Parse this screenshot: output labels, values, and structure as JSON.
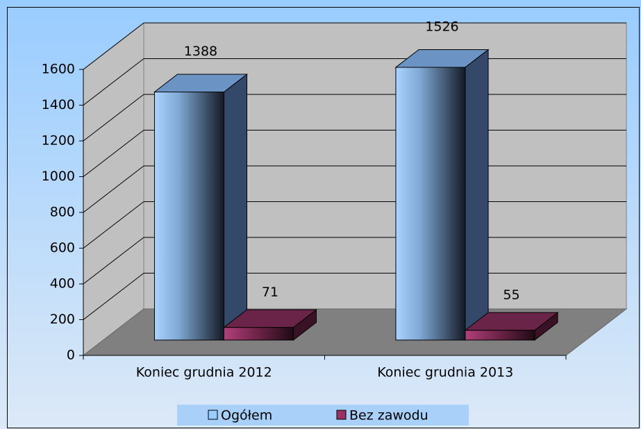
{
  "chart_data": {
    "type": "bar3d",
    "categories": [
      "Koniec grudnia 2012",
      "Koniec  grudnia 2013"
    ],
    "series": [
      {
        "name": "Ogółem",
        "color": "#99ccff",
        "values": [
          1388,
          1526
        ]
      },
      {
        "name": "Bez zawodu",
        "color": "#993366",
        "values": [
          71,
          55
        ]
      }
    ],
    "ylim": [
      0,
      1600
    ],
    "yticks": [
      0,
      200,
      400,
      600,
      800,
      1000,
      1200,
      1400,
      1600
    ],
    "grid": true
  }
}
